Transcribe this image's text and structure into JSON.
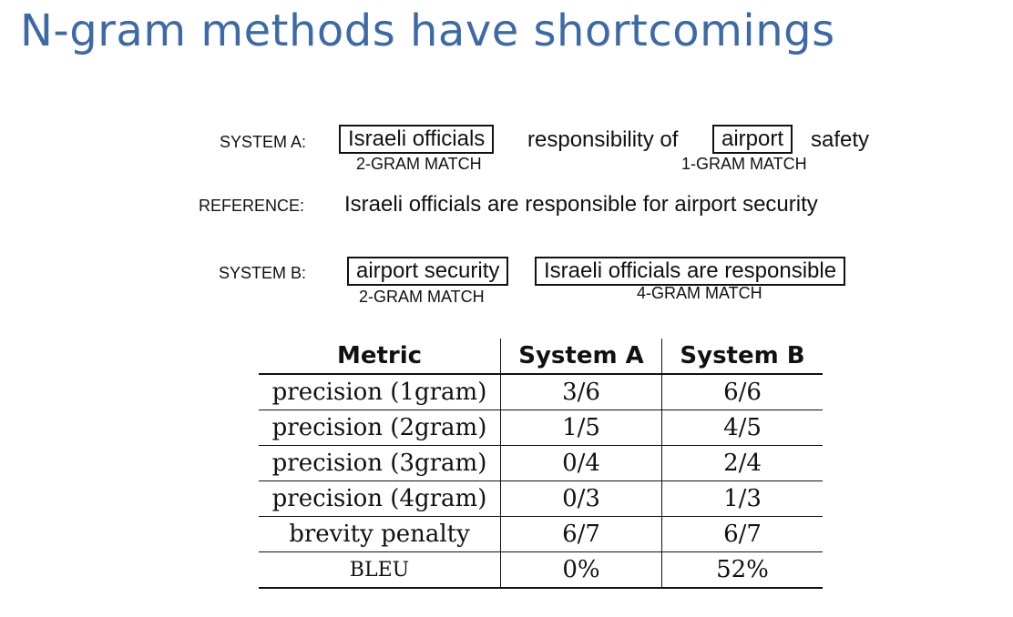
{
  "slide": {
    "title": "N-gram methods have shortcomings"
  },
  "diagram": {
    "system_a": {
      "label": "SYSTEM A:",
      "box1": "Israeli officials",
      "text1": "responsibility of",
      "box2": "airport",
      "text2": "safety",
      "match1": "2-GRAM MATCH",
      "match2": "1-GRAM MATCH"
    },
    "reference": {
      "label": "REFERENCE:",
      "text": "Israeli officials are responsible for airport security"
    },
    "system_b": {
      "label": "SYSTEM B:",
      "box1": "airport security",
      "box2": "Israeli officials are responsible",
      "match1": "2-GRAM MATCH",
      "match2": "4-GRAM MATCH"
    }
  },
  "table": {
    "headers": [
      "Metric",
      "System A",
      "System B"
    ],
    "rows": [
      [
        "precision (1gram)",
        "3/6",
        "6/6"
      ],
      [
        "precision (2gram)",
        "1/5",
        "4/5"
      ],
      [
        "precision (3gram)",
        "0/4",
        "2/4"
      ],
      [
        "precision (4gram)",
        "0/3",
        "1/3"
      ],
      [
        "brevity penalty",
        "6/7",
        "6/7"
      ],
      [
        "BLEU",
        "0%",
        "52%"
      ]
    ]
  }
}
